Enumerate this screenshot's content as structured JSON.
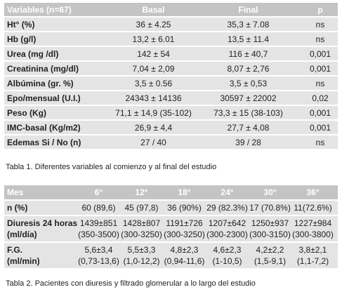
{
  "table1": {
    "header": [
      "Variables (n=67)",
      "Basal",
      "Final",
      "p"
    ],
    "rows": [
      [
        "Ht° (%)",
        "36 ± 4.25",
        "35,3 ± 7.08",
        "ns"
      ],
      [
        "Hb (g/l)",
        "13,2 ± 6.01",
        "13,5 ± 11.4",
        "ns"
      ],
      [
        "Urea (mg /dl)",
        "142 ± 54",
        "116 ± 40,7",
        "0,001"
      ],
      [
        "Creatinina (mg/dl)",
        "7,04 ± 2,09",
        "8,07 ± 2,76",
        "0,001"
      ],
      [
        "Albúmina (gr. %)",
        "3,5 ± 0.56",
        "3,5 ± 0,53",
        "ns"
      ],
      [
        "Epo/mensual (U.I.)",
        "24343 ± 14136",
        "30597 ± 22002",
        "0,02"
      ],
      [
        "Peso (Kg)",
        "71,1 ± 14,9 (35-102)",
        "73,3 ± 15 (38-103)",
        "0,001"
      ],
      [
        "IMC-basal (Kg/m2)",
        "26,9 ± 4,4",
        "27,7 ± 4,08",
        "0,001"
      ],
      [
        "Edemas Si / No (n)",
        "27 / 40",
        "39 / 28",
        "ns"
      ]
    ],
    "caption": "Tabla 1.  Diferentes variables al comienzo y al final del estudio"
  },
  "table2": {
    "header": [
      "Mes",
      "6°",
      "12°",
      "18°",
      "24°",
      "30°",
      "36°"
    ],
    "rows": [
      [
        "n (%)",
        "60 (89,6)",
        "45 (97,8)",
        "36 (90%)",
        "29 (82.3%)",
        "17 (70.8%)",
        "11(72.6%)"
      ],
      [
        "Diuresis 24 horas",
        "1439±851",
        "1428±807",
        "1191±726",
        "1207±642",
        "1250±937",
        "1227±984"
      ],
      [
        "(ml/día)",
        "(350-3500)",
        "(300-3250)",
        "(300-3250)",
        "(300-2300)",
        "(300-3150)",
        "(300-3800)"
      ],
      [
        "F.G.",
        "5,6±3,4",
        "5,5±3,3",
        "4,8±2,3",
        "4,6±2,3",
        "4,2±2,2",
        "3,8±2,1"
      ],
      [
        "(ml/min)",
        "(0,73-13,6)",
        "(1,0-12,2)",
        "(0,94-11,6)",
        "(1-10,5)",
        "(1,5-9,1)",
        "(1,1-7,2)"
      ]
    ],
    "caption": "Tabla 2.  Pacientes con diuresis y filtrado glomerular a lo largo del estudio"
  }
}
